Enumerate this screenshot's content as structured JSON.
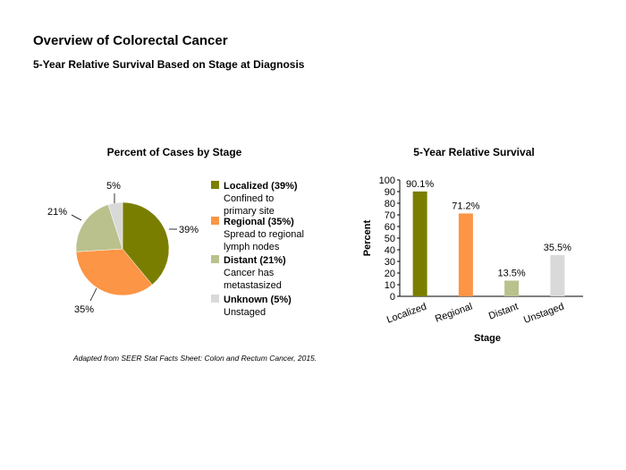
{
  "page": {
    "title": "Overview of Colorectal Cancer",
    "subtitle": "5-Year Relative Survival Based on Stage at Diagnosis",
    "source_note": "Adapted from SEER Stat Facts Sheet: Colon and Rectum Cancer, 2015."
  },
  "chart_data": [
    {
      "type": "pie",
      "title": "Percent of Cases by Stage",
      "categories": [
        "Localized",
        "Regional",
        "Distant",
        "Unknown"
      ],
      "values": [
        39,
        35,
        21,
        5
      ],
      "slice_labels": [
        "39%",
        "35%",
        "21%",
        "5%"
      ],
      "colors": [
        "#7a7e00",
        "#fc9545",
        "#bac18d",
        "#d9d9d9"
      ],
      "legend": [
        {
          "title": "Localized (39%)",
          "desc": [
            "Confined to",
            "primary site"
          ]
        },
        {
          "title": "Regional (35%)",
          "desc": [
            "Spread to regional",
            "lymph nodes"
          ]
        },
        {
          "title": "Distant (21%)",
          "desc": [
            "Cancer has",
            "metastasized"
          ]
        },
        {
          "title": "Unknown (5%)",
          "desc": [
            "Unstaged"
          ]
        }
      ],
      "legend_position": "right"
    },
    {
      "type": "bar",
      "title": "5-Year Relative Survival",
      "categories": [
        "Localized",
        "Regional",
        "Distant",
        "Unstaged"
      ],
      "values": [
        90.1,
        71.2,
        13.5,
        35.5
      ],
      "data_labels": [
        "90.1%",
        "71.2%",
        "13.5%",
        "35.5%"
      ],
      "colors": [
        "#7a7e00",
        "#fc9545",
        "#bac18d",
        "#d9d9d9"
      ],
      "xlabel": "Stage",
      "ylabel": "Percent",
      "ylim": [
        0,
        100
      ],
      "yticks": [
        0,
        10,
        20,
        30,
        40,
        50,
        60,
        70,
        80,
        90,
        100
      ],
      "grid": false
    }
  ]
}
